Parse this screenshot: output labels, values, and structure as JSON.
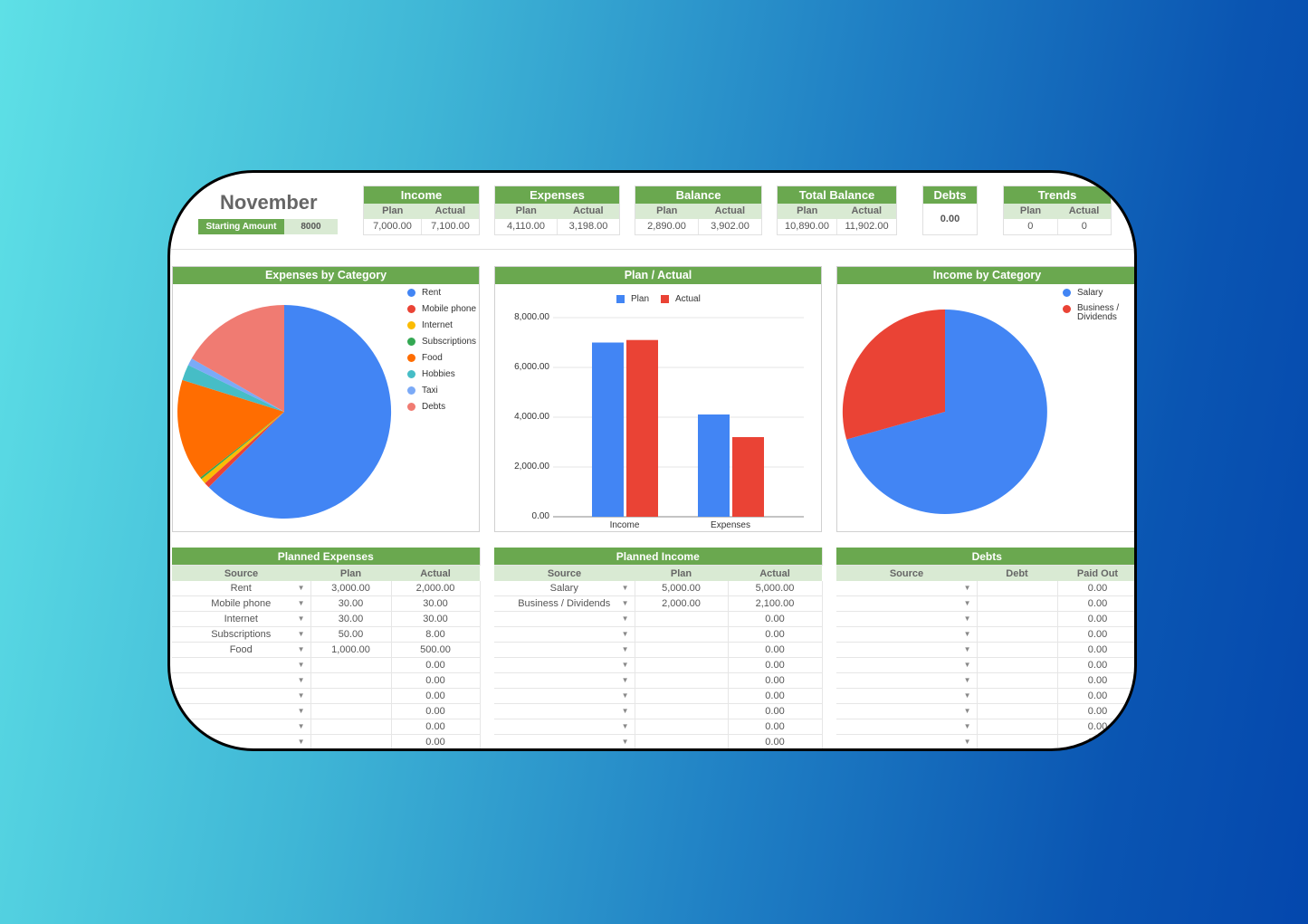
{
  "header": {
    "month": "November",
    "starting_amount_label": "Starting Amount",
    "starting_amount": "8000"
  },
  "kpis": {
    "income": {
      "title": "Income",
      "plan_label": "Plan",
      "actual_label": "Actual",
      "plan": "7,000.00",
      "actual": "7,100.00"
    },
    "expenses": {
      "title": "Expenses",
      "plan_label": "Plan",
      "actual_label": "Actual",
      "plan": "4,110.00",
      "actual": "3,198.00"
    },
    "balance": {
      "title": "Balance",
      "plan_label": "Plan",
      "actual_label": "Actual",
      "plan": "2,890.00",
      "actual": "3,902.00"
    },
    "total_balance": {
      "title": "Total Balance",
      "plan_label": "Plan",
      "actual_label": "Actual",
      "plan": "10,890.00",
      "actual": "11,902.00"
    },
    "debts": {
      "title": "Debts",
      "value": "0.00"
    },
    "trends": {
      "title": "Trends",
      "plan_label": "Plan",
      "actual_label": "Actual",
      "plan": "0",
      "actual": "0"
    }
  },
  "panels": {
    "expenses_by_category": "Expenses by Category",
    "plan_actual": "Plan / Actual",
    "income_by_category": "Income by Category"
  },
  "colors": {
    "green": "#6aa84f",
    "light_green": "#d9ead3",
    "blue": "#4285f4",
    "red": "#ea4335"
  },
  "chart_data": [
    {
      "type": "pie",
      "title": "Expenses by Category",
      "categories": [
        "Rent",
        "Mobile phone",
        "Internet",
        "Subscriptions",
        "Food",
        "Hobbies",
        "Taxi",
        "Debts"
      ],
      "values": [
        2000,
        30,
        30,
        8,
        500,
        100,
        30,
        500
      ],
      "colors": [
        "#4285f4",
        "#ea4335",
        "#fbbc04",
        "#34a853",
        "#ff6d01",
        "#46bdc6",
        "#7baaf7",
        "#f07b72"
      ],
      "legend_position": "right"
    },
    {
      "type": "bar",
      "title": "Plan / Actual",
      "categories": [
        "Income",
        "Expenses"
      ],
      "series": [
        {
          "name": "Plan",
          "values": [
            7000,
            4110
          ],
          "color": "#4285f4"
        },
        {
          "name": "Actual",
          "values": [
            7100,
            3198
          ],
          "color": "#ea4335"
        }
      ],
      "yticks": [
        "0.00",
        "2,000.00",
        "4,000.00",
        "6,000.00",
        "8,000.00"
      ],
      "ylim": [
        0,
        8000
      ],
      "grid": true,
      "legend_position": "top"
    },
    {
      "type": "pie",
      "title": "Income by Category",
      "categories": [
        "Salary",
        "Business / Dividends"
      ],
      "values": [
        5000,
        2100
      ],
      "colors": [
        "#4285f4",
        "#ea4335"
      ],
      "legend_position": "right"
    }
  ],
  "planned_expenses": {
    "title": "Planned Expenses",
    "columns": [
      "Source",
      "Plan",
      "Actual"
    ],
    "rows": [
      [
        "Rent",
        "3,000.00",
        "2,000.00"
      ],
      [
        "Mobile phone",
        "30.00",
        "30.00"
      ],
      [
        "Internet",
        "30.00",
        "30.00"
      ],
      [
        "Subscriptions",
        "50.00",
        "8.00"
      ],
      [
        "Food",
        "1,000.00",
        "500.00"
      ],
      [
        "",
        "",
        "0.00"
      ],
      [
        "",
        "",
        "0.00"
      ],
      [
        "",
        "",
        "0.00"
      ],
      [
        "",
        "",
        "0.00"
      ],
      [
        "",
        "",
        "0.00"
      ],
      [
        "",
        "",
        "0.00"
      ]
    ]
  },
  "planned_income": {
    "title": "Planned Income",
    "columns": [
      "Source",
      "Plan",
      "Actual"
    ],
    "rows": [
      [
        "Salary",
        "5,000.00",
        "5,000.00"
      ],
      [
        "Business / Dividends",
        "2,000.00",
        "2,100.00"
      ],
      [
        "",
        "",
        "0.00"
      ],
      [
        "",
        "",
        "0.00"
      ],
      [
        "",
        "",
        "0.00"
      ],
      [
        "",
        "",
        "0.00"
      ],
      [
        "",
        "",
        "0.00"
      ],
      [
        "",
        "",
        "0.00"
      ],
      [
        "",
        "",
        "0.00"
      ],
      [
        "",
        "",
        "0.00"
      ],
      [
        "",
        "",
        "0.00"
      ]
    ]
  },
  "debts_table": {
    "title": "Debts",
    "columns": [
      "Source",
      "Debt",
      "Paid Out"
    ],
    "rows": [
      [
        "",
        "",
        "0.00"
      ],
      [
        "",
        "",
        "0.00"
      ],
      [
        "",
        "",
        "0.00"
      ],
      [
        "",
        "",
        "0.00"
      ],
      [
        "",
        "",
        "0.00"
      ],
      [
        "",
        "",
        "0.00"
      ],
      [
        "",
        "",
        "0.00"
      ],
      [
        "",
        "",
        "0.00"
      ],
      [
        "",
        "",
        "0.00"
      ],
      [
        "",
        "",
        "0.00"
      ],
      [
        "",
        "",
        "0.00"
      ]
    ]
  }
}
